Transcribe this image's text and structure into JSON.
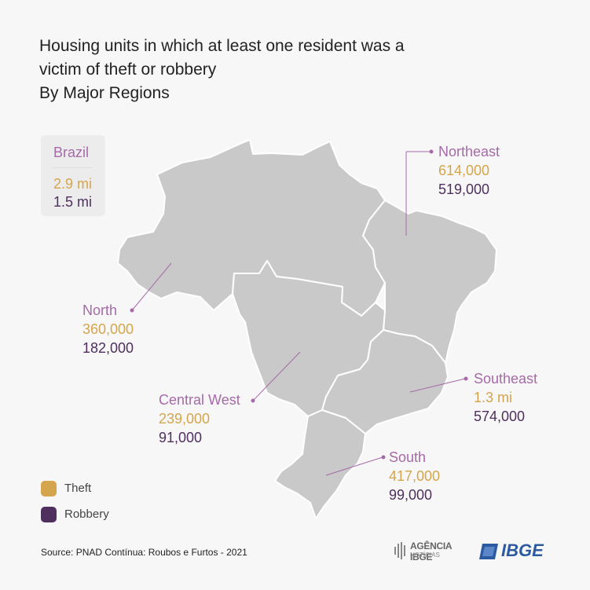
{
  "title": {
    "line1": "Housing units in which at least one resident  was a",
    "line2": "victim of theft or robbery",
    "line3": "By Major Regions"
  },
  "brazil": {
    "name": "Brazil",
    "theft": "2.9 mi",
    "robbery": "1.5 mi"
  },
  "colors": {
    "theft": "#d4a54c",
    "robbery": "#4f2f5e",
    "region_label": "#a66aa8",
    "map_fill": "#c9c9c9",
    "map_border": "#ffffff"
  },
  "legend": {
    "theft": "Theft",
    "robbery": "Robbery"
  },
  "source": "Source: PNAD Contínua: Roubos e Furtos - 2021",
  "logos": {
    "agencia_line1": "AGÊNCIA IBGE",
    "agencia_line2": "NOTÍCIAS",
    "ibge": "IBGE"
  },
  "chart_data": {
    "type": "map",
    "categories": [
      "North",
      "Northeast",
      "Central West",
      "Southeast",
      "South"
    ],
    "series": [
      {
        "name": "Theft",
        "values": [
          360000,
          614000,
          239000,
          1300000,
          417000
        ]
      },
      {
        "name": "Robbery",
        "values": [
          182000,
          519000,
          91000,
          574000,
          99000
        ]
      }
    ],
    "labels": {
      "North": {
        "theft": "360,000",
        "robbery": "182,000"
      },
      "Northeast": {
        "theft": "614,000",
        "robbery": "519,000"
      },
      "Central West": {
        "theft": "239,000",
        "robbery": "91,000"
      },
      "Southeast": {
        "theft": "1.3 mi",
        "robbery": "574,000"
      },
      "South": {
        "theft": "417,000",
        "robbery": "99,000"
      }
    },
    "total": {
      "name": "Brazil",
      "theft": "2.9 mi",
      "robbery": "1.5 mi"
    }
  }
}
